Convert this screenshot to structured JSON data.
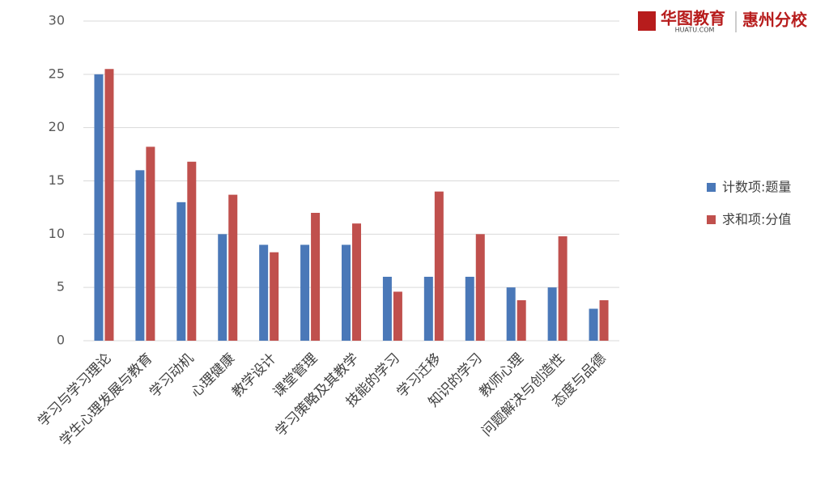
{
  "logo": {
    "name": "华图教育",
    "url": "HUATU.COM",
    "branch": "惠州分校"
  },
  "chart_data": {
    "type": "bar",
    "categories": [
      "学习与学习理论",
      "学生心理发展与教育",
      "学习动机",
      "心理健康",
      "教学设计",
      "课堂管理",
      "学习策略及其教学",
      "技能的学习",
      "学习迁移",
      "知识的学习",
      "教师心理",
      "问题解决与创造性",
      "态度与品德"
    ],
    "series": [
      {
        "name": "计数项:题量",
        "color": "#4a78b8",
        "values": [
          25,
          16,
          13,
          10,
          9,
          9,
          9,
          6,
          6,
          6,
          5,
          5,
          3
        ]
      },
      {
        "name": "求和项:分值",
        "color": "#c0504d",
        "values": [
          25.5,
          18.2,
          16.8,
          13.7,
          8.3,
          12,
          11,
          4.6,
          14,
          10,
          3.8,
          9.8,
          3.8
        ]
      }
    ],
    "ylim": [
      0,
      30
    ],
    "yticks": [
      0,
      5,
      10,
      15,
      20,
      25,
      30
    ],
    "grid": true,
    "legend": "right"
  }
}
